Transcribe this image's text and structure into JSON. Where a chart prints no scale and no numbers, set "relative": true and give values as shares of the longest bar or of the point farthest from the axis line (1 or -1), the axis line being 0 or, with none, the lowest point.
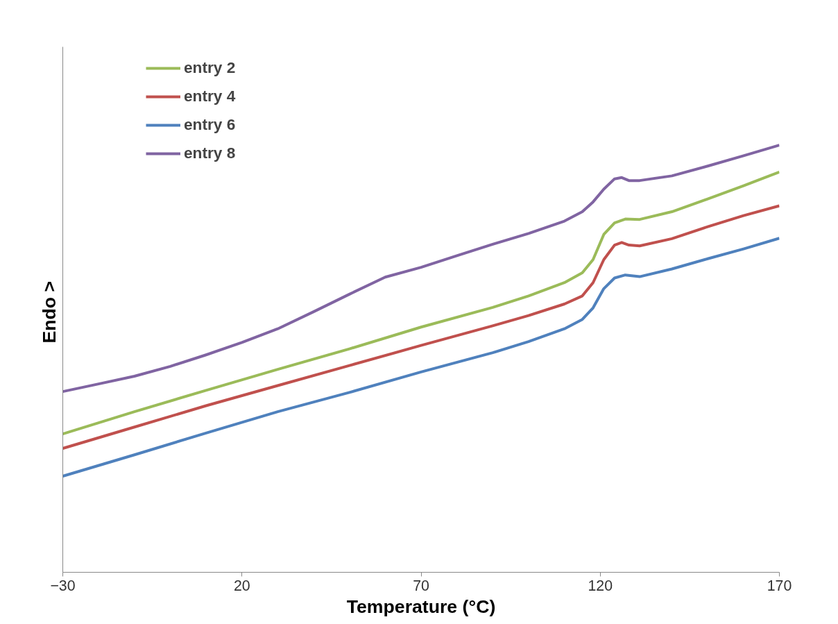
{
  "chart_data": {
    "type": "line",
    "relative": true,
    "xlabel": "Temperature (°C)",
    "ylabel": "Endo  >",
    "xlim": [
      -30,
      170
    ],
    "xticks": [
      -30,
      20,
      70,
      120,
      170
    ],
    "grid": false,
    "legend": "top left",
    "marker": "none",
    "line_style": "solid",
    "series": [
      {
        "name": "entry 2",
        "color": "#9bbb59",
        "x": [
          -30,
          -10,
          10,
          30,
          50,
          70,
          90,
          100,
          110,
          115,
          118,
          121,
          124,
          127,
          131,
          140,
          150,
          160,
          170
        ],
        "values": [
          0.324,
          0.376,
          0.426,
          0.475,
          0.523,
          0.574,
          0.62,
          0.647,
          0.678,
          0.701,
          0.732,
          0.791,
          0.818,
          0.827,
          0.826,
          0.844,
          0.874,
          0.905,
          0.937
        ]
      },
      {
        "name": "entry 4",
        "color": "#c0504d",
        "x": [
          -30,
          -10,
          10,
          30,
          50,
          70,
          90,
          100,
          110,
          115,
          118,
          121,
          124,
          126,
          128,
          131,
          140,
          150,
          160,
          170
        ],
        "values": [
          0.29,
          0.34,
          0.39,
          0.437,
          0.484,
          0.531,
          0.577,
          0.601,
          0.628,
          0.647,
          0.678,
          0.732,
          0.766,
          0.772,
          0.766,
          0.764,
          0.781,
          0.809,
          0.835,
          0.858
        ]
      },
      {
        "name": "entry 6",
        "color": "#4f81bd",
        "x": [
          -30,
          -10,
          10,
          30,
          50,
          70,
          90,
          100,
          110,
          115,
          118,
          121,
          124,
          127,
          131,
          140,
          150,
          160,
          170
        ],
        "values": [
          0.225,
          0.275,
          0.326,
          0.376,
          0.421,
          0.469,
          0.514,
          0.54,
          0.57,
          0.592,
          0.619,
          0.664,
          0.689,
          0.696,
          0.692,
          0.71,
          0.734,
          0.757,
          0.782
        ]
      },
      {
        "name": "entry 8",
        "color": "#8064a2",
        "x": [
          -30,
          -20,
          -10,
          0,
          10,
          20,
          30,
          40,
          50,
          60,
          70,
          80,
          90,
          100,
          110,
          115,
          118,
          121,
          124,
          126,
          128,
          131,
          140,
          150,
          160,
          170
        ],
        "values": [
          0.423,
          0.441,
          0.459,
          0.482,
          0.509,
          0.538,
          0.57,
          0.61,
          0.651,
          0.691,
          0.714,
          0.741,
          0.768,
          0.793,
          0.822,
          0.844,
          0.867,
          0.897,
          0.921,
          0.924,
          0.917,
          0.917,
          0.928,
          0.951,
          0.975,
          1
        ]
      }
    ]
  }
}
